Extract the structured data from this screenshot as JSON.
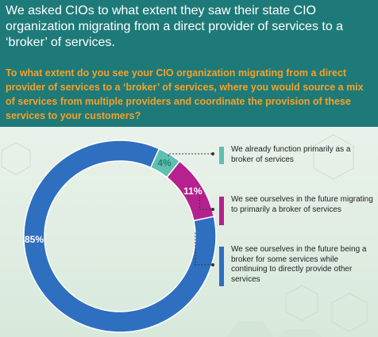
{
  "header": {
    "intro": "We asked CIOs to what extent they saw their state CIO organization migrating from a direct provider of services to a ‘broker’ of services.",
    "question": "To what extent do you see your CIO organization migrating from a direct provider of services to a ‘broker’ of services, where you would source a mix of services from multiple providers and coordinate the provision of these services to your customers?"
  },
  "colors": {
    "header_bg": "#1e7a78",
    "question_text": "#f5a02a",
    "slice_already": "#5fbfb0",
    "slice_future_primarily": "#b5218f",
    "slice_some_services": "#2e6fc0",
    "panel_bg": "#e3efe6"
  },
  "chart_data": {
    "type": "pie",
    "donut": true,
    "slices": [
      {
        "label": "We already function primarily as a broker of services",
        "value": 4,
        "display": "4%",
        "color": "#5fbfb0"
      },
      {
        "label": "We see ourselves in the future migrating to primarily a broker of services",
        "value": 11,
        "display": "11%",
        "color": "#b5218f"
      },
      {
        "label": "We see ourselves in the future being a broker for some services while continuing to directly provide other services",
        "value": 85,
        "display": "85%",
        "color": "#2e6fc0"
      }
    ]
  }
}
